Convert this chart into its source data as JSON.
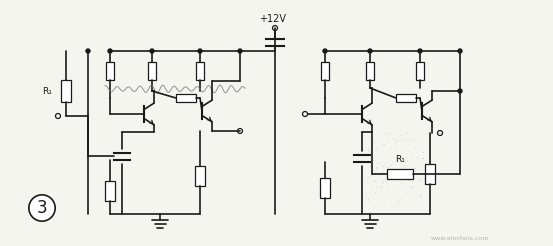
{
  "bg_color": "#f5f5f0",
  "line_color": "#1a1a1a",
  "fig_width": 5.53,
  "fig_height": 2.46,
  "dpi": 100,
  "label_plus12v": "+12V",
  "label_circled3": "3",
  "label_R1_left": "R₁",
  "label_R1_right": "R₁",
  "watermark": "www.elecfans.com",
  "lw_main": 1.2,
  "lw_thin": 0.8
}
